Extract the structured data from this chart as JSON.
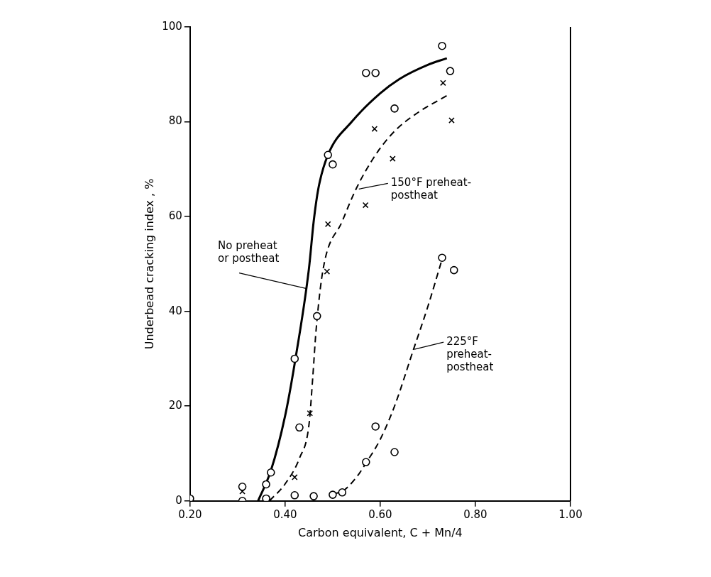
{
  "chart_data": {
    "type": "scatter",
    "xlabel": "Carbon equivalent, C + Mn/4",
    "ylabel": "Underbead cracking index , %",
    "xlim": [
      0.2,
      1.0
    ],
    "ylim": [
      0,
      100
    ],
    "xticks": [
      {
        "value": 0.2,
        "label": "0.20"
      },
      {
        "value": 0.4,
        "label": "0.40"
      },
      {
        "value": 0.6,
        "label": "0.60"
      },
      {
        "value": 0.8,
        "label": "0.80"
      },
      {
        "value": 1.0,
        "label": "1.00"
      }
    ],
    "yticks": [
      0,
      20,
      40,
      60,
      80,
      100
    ],
    "grid": false,
    "legend": false,
    "series": [
      {
        "type": "scatter",
        "marker": "circle",
        "color": "#000000",
        "x": [
          0.2,
          0.31,
          0.31,
          0.36,
          0.36,
          0.37,
          0.42,
          0.43,
          0.467,
          0.49,
          0.5,
          0.57,
          0.59,
          0.63,
          0.73,
          0.747
        ],
        "values": [
          0.5,
          0,
          3,
          0.5,
          3.5,
          6,
          30,
          15.5,
          39,
          73,
          71,
          90.3,
          90.3,
          82.8,
          96,
          90.7
        ]
      },
      {
        "type": "scatter",
        "marker": "cross",
        "color": "#000000",
        "x": [
          0.31,
          0.42,
          0.452,
          0.488,
          0.49,
          0.569,
          0.588,
          0.626,
          0.732,
          0.75
        ],
        "values": [
          2,
          5,
          18.5,
          48.4,
          58.4,
          62.4,
          78.5,
          72.2,
          88.2,
          80.3
        ]
      },
      {
        "type": "scatter",
        "marker": "circle",
        "color": "#000000",
        "x": [
          0.42,
          0.46,
          0.5,
          0.52,
          0.57,
          0.59,
          0.63,
          0.73,
          0.755
        ],
        "values": [
          1.2,
          1,
          1.3,
          1.8,
          8.2,
          15.7,
          10.3,
          51.3,
          48.7
        ]
      },
      {
        "type": "line",
        "line_style": "solid",
        "color": "#000000",
        "x": [
          0.343,
          0.37,
          0.4,
          0.42,
          0.45,
          0.46,
          0.47,
          0.49,
          0.54,
          0.6,
          0.64,
          0.7,
          0.74
        ],
        "values": [
          0,
          6.4,
          18,
          29,
          49,
          59,
          66,
          73,
          80,
          86,
          89,
          92,
          93.4
        ]
      },
      {
        "type": "line",
        "line_style": "dashed",
        "color": "#000000",
        "x": [
          0.367,
          0.4,
          0.43,
          0.45,
          0.458,
          0.465,
          0.48,
          0.52,
          0.55,
          0.59,
          0.63,
          0.68,
          0.74
        ],
        "values": [
          0,
          3.6,
          9,
          16,
          26,
          36,
          49,
          59,
          66,
          73,
          78,
          82,
          85.5
        ]
      },
      {
        "type": "line",
        "line_style": "dashed",
        "color": "#000000",
        "x": [
          0.5,
          0.52,
          0.55,
          0.57,
          0.6,
          0.63,
          0.67,
          0.7,
          0.73
        ],
        "values": [
          1.5,
          2,
          5,
          8,
          13,
          20,
          32,
          41,
          51
        ]
      }
    ],
    "annotations": [
      {
        "text": "No preheat\nor postheat",
        "x": 0.445,
        "y": 44.8
      },
      {
        "text": "150°F preheat-\npostheat",
        "x": 0.555,
        "y": 65.8
      },
      {
        "text": "225°F\npreheat-\npostheat",
        "x": 0.672,
        "y": 32
      }
    ]
  }
}
